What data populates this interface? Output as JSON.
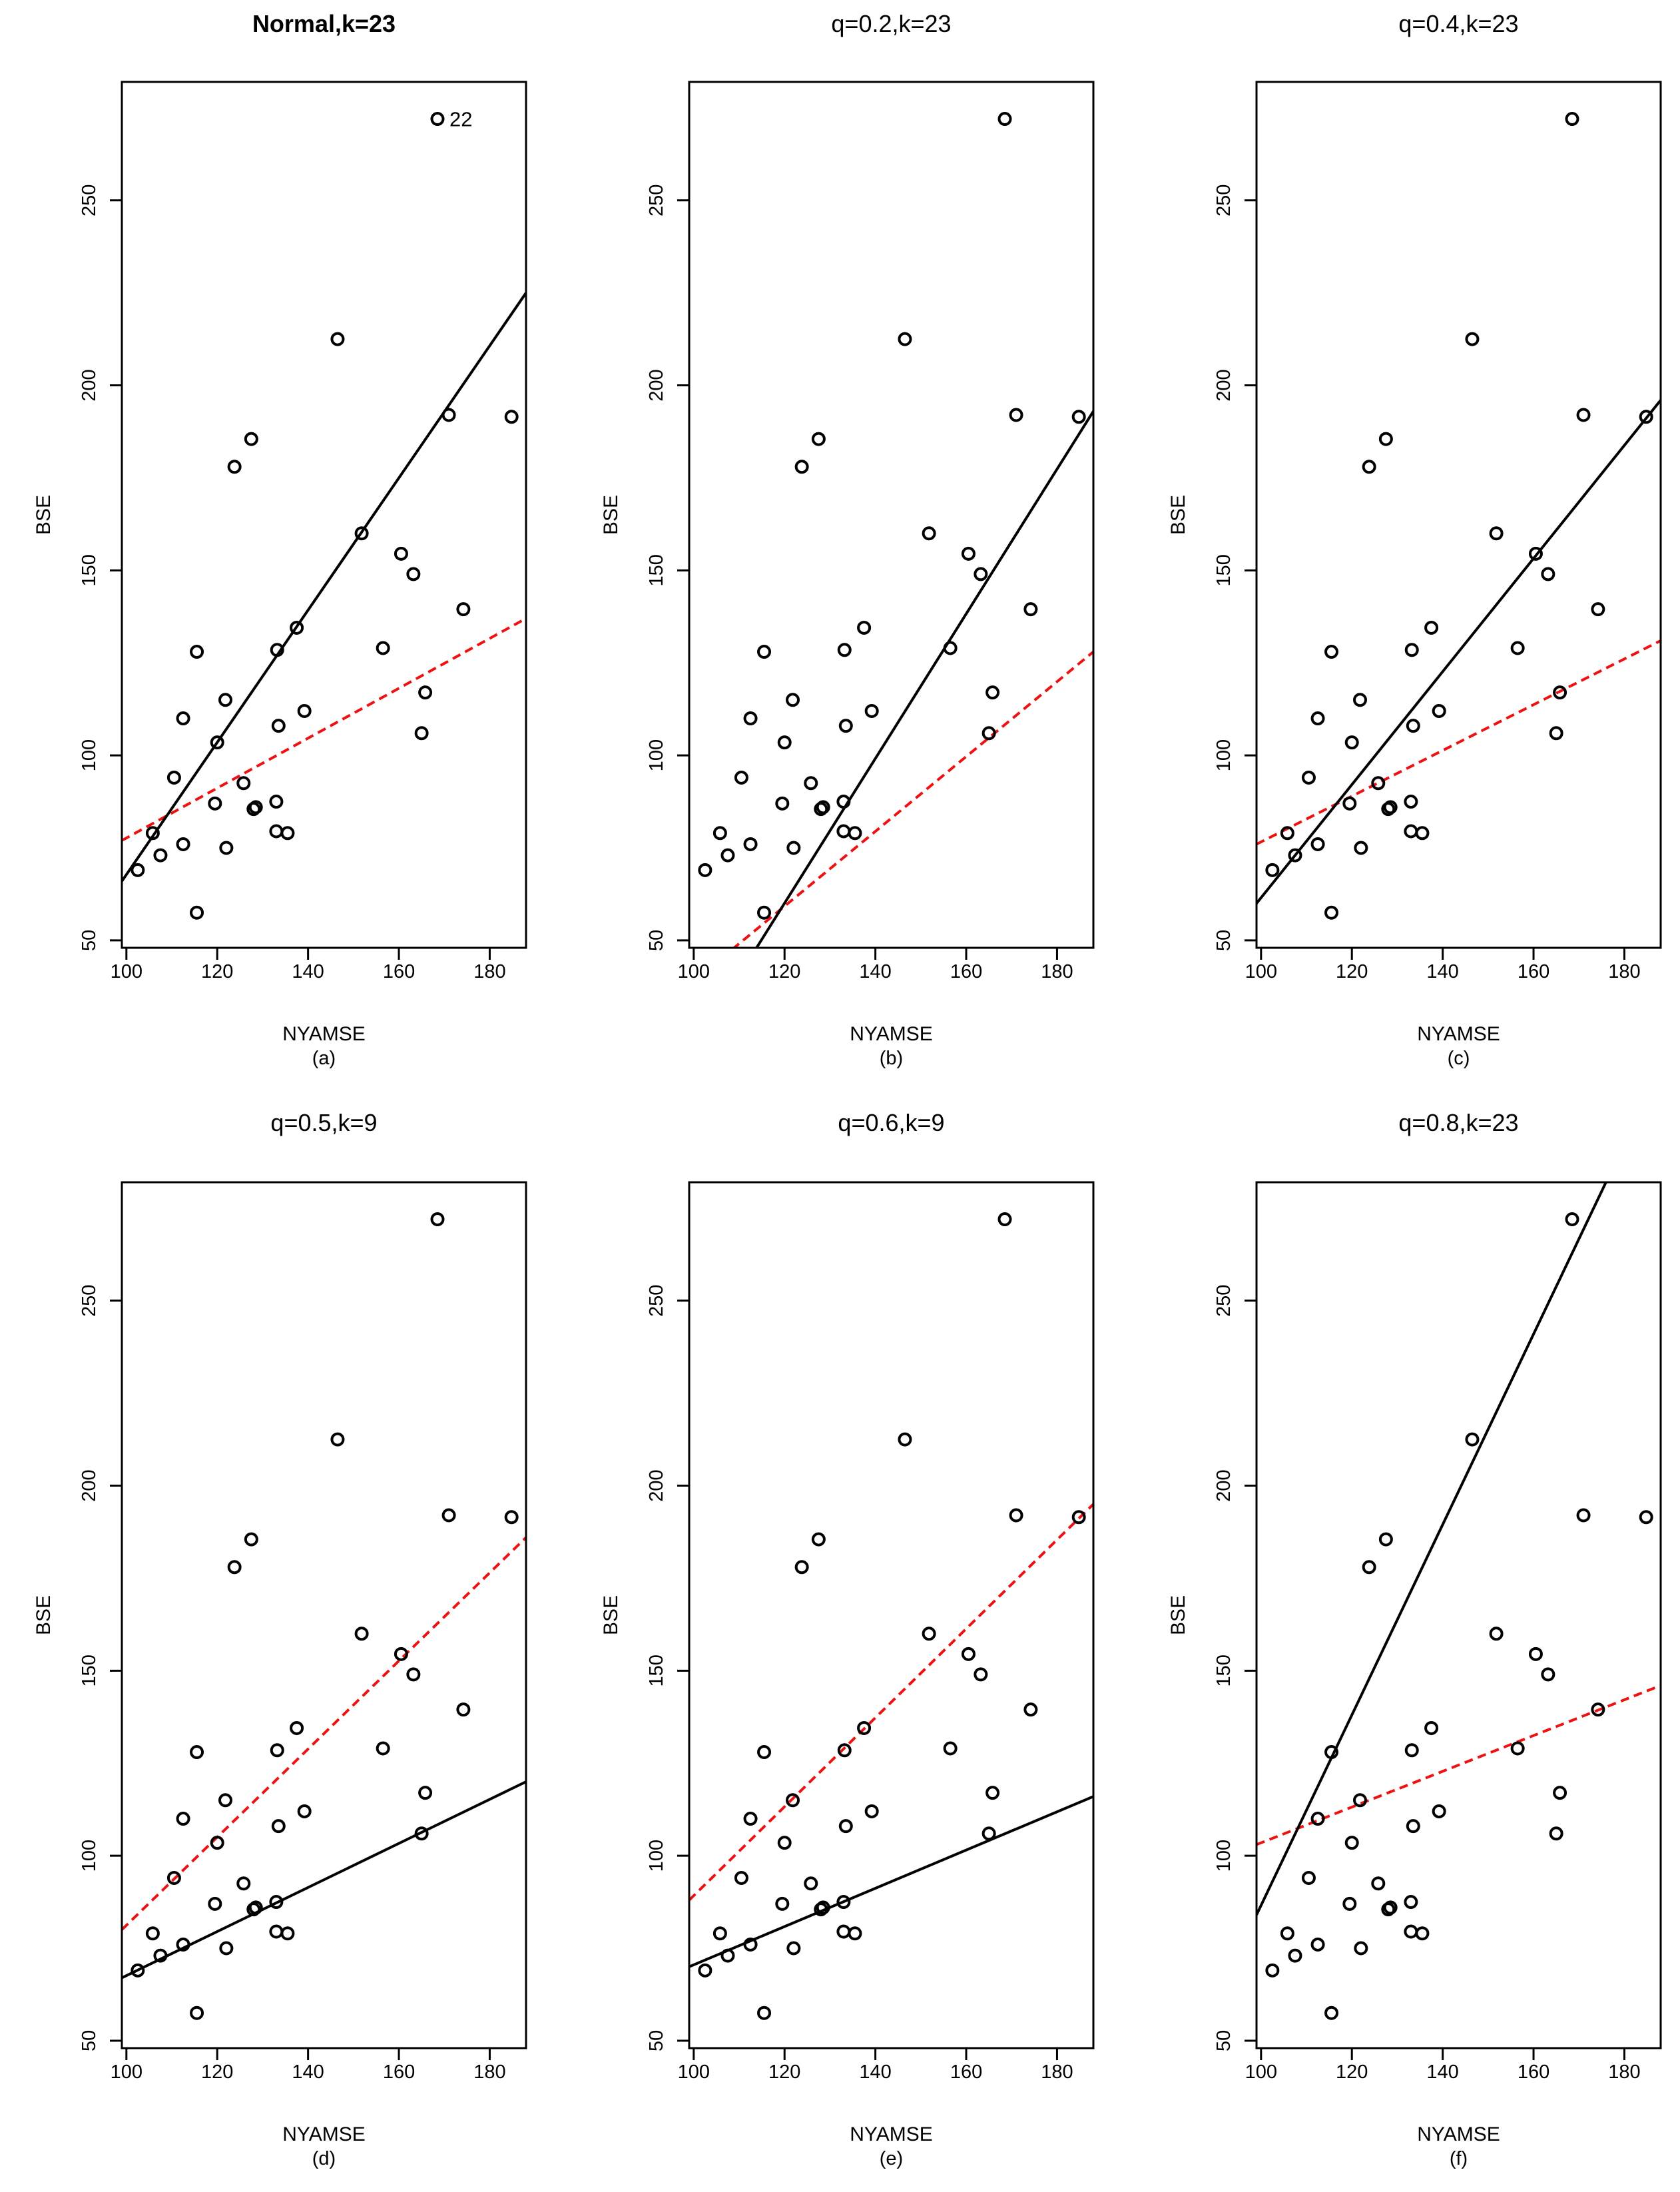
{
  "figure": {
    "xlabel": "NYAMSE",
    "ylabel": "BSE"
  },
  "points": {
    "x": [
      102.5,
      105.8,
      107.5,
      110.5,
      112.5,
      112.5,
      115.5,
      115.5,
      119.5,
      120,
      121.8,
      122,
      123.8,
      125.8,
      127.5,
      128,
      128.5,
      133,
      133,
      133.2,
      133.5,
      135.5,
      137.5,
      139.2,
      146.5,
      151.8,
      156.5,
      160.5,
      163.2,
      165,
      165.8,
      168.5,
      171,
      174.2,
      184.8
    ],
    "y": [
      69,
      79,
      73,
      94,
      110,
      76,
      57.5,
      128,
      87,
      103.5,
      115,
      75,
      178,
      92.5,
      185.5,
      85.5,
      86,
      87.5,
      79.5,
      128.5,
      108,
      79,
      134.5,
      112,
      212.5,
      160,
      129,
      154.5,
      149,
      106,
      117,
      272,
      192,
      139.5,
      191.5
    ]
  },
  "chart_data": [
    {
      "type": "scatter",
      "title": "Normal,k=23",
      "sublabel": "(a)",
      "xlabel": "NYAMSE",
      "ylabel": "BSE",
      "xlim": [
        99,
        188
      ],
      "ylim": [
        48,
        282
      ],
      "xticks": [
        100,
        120,
        140,
        160,
        180
      ],
      "yticks": [
        50,
        100,
        150,
        200,
        250
      ],
      "solid_line": [
        [
          99,
          66
        ],
        [
          188,
          225
        ]
      ],
      "dashed_line": [
        [
          99,
          77
        ],
        [
          188,
          137
        ]
      ],
      "annotation": {
        "text": "22",
        "x": 168.5,
        "y": 272
      }
    },
    {
      "type": "scatter",
      "title": "q=0.2,k=23",
      "sublabel": "(b)",
      "xlabel": "NYAMSE",
      "ylabel": "BSE",
      "xlim": [
        99,
        188
      ],
      "ylim": [
        48,
        282
      ],
      "xticks": [
        100,
        120,
        140,
        160,
        180
      ],
      "yticks": [
        50,
        100,
        150,
        200,
        250
      ],
      "solid_line": [
        [
          99,
          19
        ],
        [
          188,
          193
        ]
      ],
      "dashed_line": [
        [
          99,
          38
        ],
        [
          188,
          128
        ]
      ]
    },
    {
      "type": "scatter",
      "title": "q=0.4,k=23",
      "sublabel": "(c)",
      "xlabel": "NYAMSE",
      "ylabel": "BSE",
      "xlim": [
        99,
        188
      ],
      "ylim": [
        48,
        282
      ],
      "xticks": [
        100,
        120,
        140,
        160,
        180
      ],
      "yticks": [
        50,
        100,
        150,
        200,
        250
      ],
      "solid_line": [
        [
          99,
          60
        ],
        [
          188,
          196
        ]
      ],
      "dashed_line": [
        [
          99,
          76
        ],
        [
          188,
          131
        ]
      ]
    },
    {
      "type": "scatter",
      "title": "q=0.5,k=9",
      "sublabel": "(d)",
      "xlabel": "NYAMSE",
      "ylabel": "BSE",
      "xlim": [
        99,
        188
      ],
      "ylim": [
        48,
        282
      ],
      "xticks": [
        100,
        120,
        140,
        160,
        180
      ],
      "yticks": [
        50,
        100,
        150,
        200,
        250
      ],
      "solid_line": [
        [
          99,
          67
        ],
        [
          188,
          120
        ]
      ],
      "dashed_line": [
        [
          99,
          80
        ],
        [
          188,
          186
        ]
      ]
    },
    {
      "type": "scatter",
      "title": "q=0.6,k=9",
      "sublabel": "(e)",
      "xlabel": "NYAMSE",
      "ylabel": "BSE",
      "xlim": [
        99,
        188
      ],
      "ylim": [
        48,
        282
      ],
      "xticks": [
        100,
        120,
        140,
        160,
        180
      ],
      "yticks": [
        50,
        100,
        150,
        200,
        250
      ],
      "solid_line": [
        [
          99,
          70
        ],
        [
          188,
          116
        ]
      ],
      "dashed_line": [
        [
          99,
          88
        ],
        [
          188,
          195
        ]
      ]
    },
    {
      "type": "scatter",
      "title": "q=0.8,k=23",
      "sublabel": "(f)",
      "xlabel": "NYAMSE",
      "ylabel": "BSE",
      "xlim": [
        99,
        188
      ],
      "ylim": [
        48,
        282
      ],
      "xticks": [
        100,
        120,
        140,
        160,
        180
      ],
      "yticks": [
        50,
        100,
        150,
        200,
        250
      ],
      "solid_line": [
        [
          99,
          84
        ],
        [
          188,
          313
        ]
      ],
      "dashed_line": [
        [
          99,
          103
        ],
        [
          188,
          146
        ]
      ]
    }
  ]
}
